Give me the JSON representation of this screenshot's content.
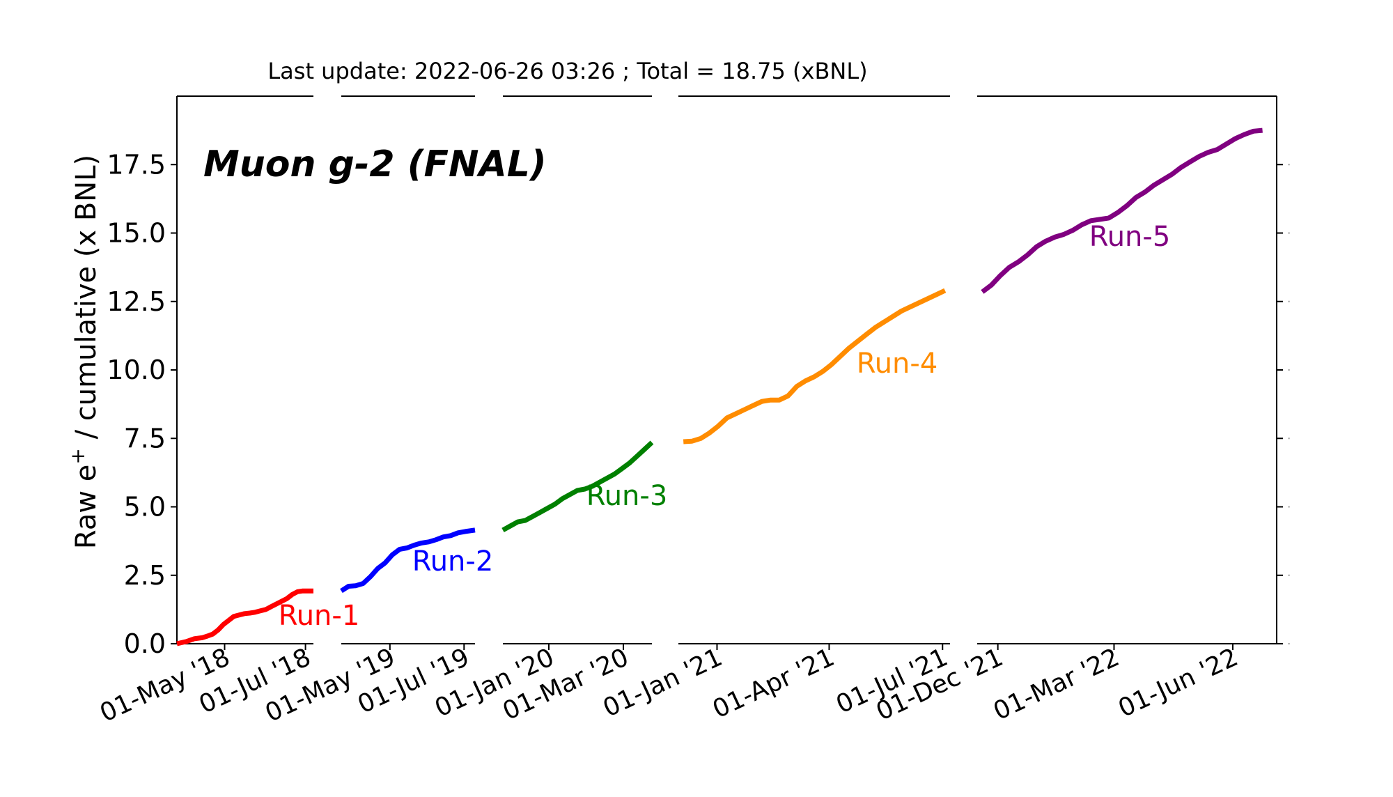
{
  "chart_data": {
    "type": "line",
    "header": "Last update: 2022-06-26 03:26 ; Total = 18.75 (xBNL)",
    "title": "Muon g-2 (FNAL)",
    "ylabel": "Raw e⁺ / cumulative (x BNL)",
    "ylabel_parts": {
      "main": "Raw e",
      "sup": "+",
      "rest": " / cumulative (x BNL)"
    },
    "ylim": [
      0,
      20
    ],
    "yticks": [
      0.0,
      2.5,
      5.0,
      7.5,
      10.0,
      12.5,
      15.0,
      17.5
    ],
    "ytick_labels": [
      "0.0",
      "2.5",
      "5.0",
      "7.5",
      "10.0",
      "12.5",
      "15.0",
      "17.5"
    ],
    "grid": false,
    "series": [
      {
        "name": "Run-1",
        "color": "#ff0000",
        "x_range": [
          "2018-03-26",
          "2018-07-07"
        ],
        "xticks": [
          {
            "date": "2018-05-01",
            "label": "01-May '18"
          },
          {
            "date": "2018-07-01",
            "label": "01-Jul '18"
          }
        ],
        "x": [
          "2018-03-26",
          "2018-04-02",
          "2018-04-08",
          "2018-04-14",
          "2018-04-18",
          "2018-04-22",
          "2018-04-26",
          "2018-04-30",
          "2018-05-04",
          "2018-05-08",
          "2018-05-12",
          "2018-05-16",
          "2018-05-20",
          "2018-05-24",
          "2018-05-28",
          "2018-06-01",
          "2018-06-05",
          "2018-06-09",
          "2018-06-13",
          "2018-06-17",
          "2018-06-21",
          "2018-06-25",
          "2018-06-29",
          "2018-07-03",
          "2018-07-07"
        ],
        "y": [
          0.0,
          0.08,
          0.18,
          0.22,
          0.28,
          0.35,
          0.5,
          0.7,
          0.85,
          1.0,
          1.05,
          1.1,
          1.12,
          1.15,
          1.2,
          1.25,
          1.35,
          1.45,
          1.55,
          1.65,
          1.8,
          1.9,
          1.93,
          1.93,
          1.93
        ]
      },
      {
        "name": "Run-2",
        "color": "#0000ff",
        "x_range": [
          "2019-03-22",
          "2019-07-10"
        ],
        "xticks": [
          {
            "date": "2019-05-01",
            "label": "01-May '19"
          },
          {
            "date": "2019-07-01",
            "label": "01-Jul '19"
          }
        ],
        "x": [
          "2019-03-22",
          "2019-03-28",
          "2019-04-03",
          "2019-04-09",
          "2019-04-15",
          "2019-04-21",
          "2019-04-27",
          "2019-05-03",
          "2019-05-09",
          "2019-05-15",
          "2019-05-21",
          "2019-05-27",
          "2019-06-02",
          "2019-06-08",
          "2019-06-14",
          "2019-06-20",
          "2019-06-26",
          "2019-07-02",
          "2019-07-10"
        ],
        "y": [
          1.93,
          2.1,
          2.12,
          2.2,
          2.45,
          2.75,
          2.95,
          3.25,
          3.45,
          3.5,
          3.6,
          3.68,
          3.72,
          3.8,
          3.9,
          3.95,
          4.05,
          4.1,
          4.15
        ]
      },
      {
        "name": "Run-3",
        "color": "#008000",
        "x_range": [
          "2019-11-25",
          "2020-03-24"
        ],
        "xticks": [
          {
            "date": "2020-01-01",
            "label": "01-Jan '20"
          },
          {
            "date": "2020-03-01",
            "label": "01-Mar '20"
          }
        ],
        "x": [
          "2019-11-25",
          "2019-12-01",
          "2019-12-07",
          "2019-12-13",
          "2019-12-19",
          "2019-12-25",
          "2019-12-31",
          "2020-01-06",
          "2020-01-12",
          "2020-01-18",
          "2020-01-24",
          "2020-01-30",
          "2020-02-05",
          "2020-02-11",
          "2020-02-17",
          "2020-02-23",
          "2020-02-29",
          "2020-03-06",
          "2020-03-12",
          "2020-03-18",
          "2020-03-24"
        ],
        "y": [
          4.15,
          4.3,
          4.45,
          4.5,
          4.65,
          4.8,
          4.95,
          5.1,
          5.3,
          5.45,
          5.6,
          5.65,
          5.75,
          5.9,
          6.05,
          6.2,
          6.4,
          6.6,
          6.85,
          7.1,
          7.35
        ]
      },
      {
        "name": "Run-4",
        "color": "#ff8c00",
        "x_range": [
          "2020-12-01",
          "2021-07-07"
        ],
        "xticks": [
          {
            "date": "2021-01-01",
            "label": "01-Jan '21"
          },
          {
            "date": "2021-04-01",
            "label": "01-Apr '21"
          },
          {
            "date": "2021-07-01",
            "label": "01-Jul '21"
          }
        ],
        "x": [
          "2020-12-05",
          "2020-12-12",
          "2020-12-19",
          "2020-12-26",
          "2021-01-02",
          "2021-01-09",
          "2021-01-16",
          "2021-01-23",
          "2021-01-30",
          "2021-02-06",
          "2021-02-13",
          "2021-02-20",
          "2021-02-27",
          "2021-03-06",
          "2021-03-13",
          "2021-03-20",
          "2021-03-27",
          "2021-04-03",
          "2021-04-10",
          "2021-04-17",
          "2021-04-24",
          "2021-05-01",
          "2021-05-08",
          "2021-05-15",
          "2021-05-22",
          "2021-05-29",
          "2021-06-05",
          "2021-06-12",
          "2021-06-19",
          "2021-06-26",
          "2021-07-03"
        ],
        "y": [
          7.38,
          7.4,
          7.5,
          7.7,
          7.95,
          8.25,
          8.4,
          8.55,
          8.7,
          8.85,
          8.9,
          8.9,
          9.05,
          9.4,
          9.6,
          9.75,
          9.95,
          10.2,
          10.5,
          10.8,
          11.05,
          11.3,
          11.55,
          11.75,
          11.95,
          12.15,
          12.3,
          12.45,
          12.6,
          12.75,
          12.9
        ]
      },
      {
        "name": "Run-5",
        "color": "#800080",
        "x_range": [
          "2021-11-15",
          "2022-07-05"
        ],
        "xticks": [
          {
            "date": "2021-12-01",
            "label": "01-Dec '21"
          },
          {
            "date": "2022-03-01",
            "label": "01-Mar '22"
          },
          {
            "date": "2022-06-01",
            "label": "01-Jun '22"
          }
        ],
        "x": [
          "2021-11-19",
          "2021-11-26",
          "2021-12-03",
          "2021-12-10",
          "2021-12-17",
          "2021-12-24",
          "2021-12-31",
          "2022-01-07",
          "2022-01-14",
          "2022-01-21",
          "2022-01-28",
          "2022-02-04",
          "2022-02-11",
          "2022-02-18",
          "2022-02-25",
          "2022-03-04",
          "2022-03-11",
          "2022-03-18",
          "2022-03-25",
          "2022-04-01",
          "2022-04-08",
          "2022-04-15",
          "2022-04-22",
          "2022-04-29",
          "2022-05-06",
          "2022-05-13",
          "2022-05-20",
          "2022-05-27",
          "2022-06-03",
          "2022-06-10",
          "2022-06-17",
          "2022-06-24"
        ],
        "y": [
          12.85,
          13.1,
          13.45,
          13.75,
          13.95,
          14.2,
          14.5,
          14.7,
          14.85,
          14.95,
          15.1,
          15.3,
          15.45,
          15.5,
          15.55,
          15.75,
          16.0,
          16.3,
          16.5,
          16.75,
          16.95,
          17.15,
          17.4,
          17.6,
          17.8,
          17.95,
          18.05,
          18.25,
          18.45,
          18.6,
          18.72,
          18.75
        ]
      }
    ]
  }
}
